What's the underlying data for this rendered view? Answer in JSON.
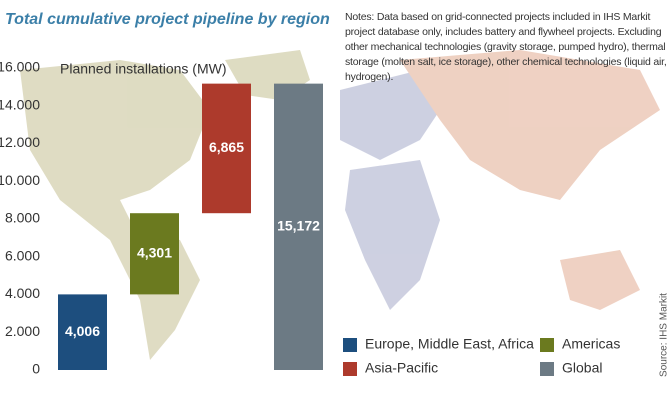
{
  "chart_data": {
    "type": "waterfall",
    "title": "Total cumulative project pipeline by region",
    "y_label": "Planned installations (MW)",
    "notes": "Notes: Data based on grid-connected projects included in IHS Markit project database only, includes battery and flywheel projects. Excluding other mechanical technologies (gravity storage, pumped hydro), thermal storage (molten salt, ice storage), other chemical technologies (liquid air, hydrogen).",
    "source": "Source: IHS Markit",
    "ylim": [
      0,
      16000
    ],
    "yticks": [
      {
        "value": 0,
        "label": "0"
      },
      {
        "value": 2000,
        "label": "2.000"
      },
      {
        "value": 4000,
        "label": "4.000"
      },
      {
        "value": 6000,
        "label": "6.000"
      },
      {
        "value": 8000,
        "label": "8.000"
      },
      {
        "value": 10000,
        "label": "10.000"
      },
      {
        "value": 12000,
        "label": "12.000"
      },
      {
        "value": 14000,
        "label": "14.000"
      },
      {
        "value": 16000,
        "label": "16.000"
      }
    ],
    "grid": false,
    "legend": "bottom-right",
    "series": [
      {
        "name": "Europe, Middle East, Africa",
        "color": "#1d4e7e",
        "values": [
          4006
        ],
        "value_labels": [
          "4,006"
        ]
      },
      {
        "name": "Americas",
        "color": "#6b7a1f",
        "values": [
          4301
        ],
        "value_labels": [
          "4,301"
        ]
      },
      {
        "name": "Asia-Pacific",
        "color": "#ad3a2c",
        "values": [
          6865
        ],
        "value_labels": [
          "6,865"
        ]
      },
      {
        "name": "Global",
        "color": "#6c7a84",
        "values": [
          15172
        ],
        "value_labels": [
          "15,172"
        ]
      }
    ]
  }
}
